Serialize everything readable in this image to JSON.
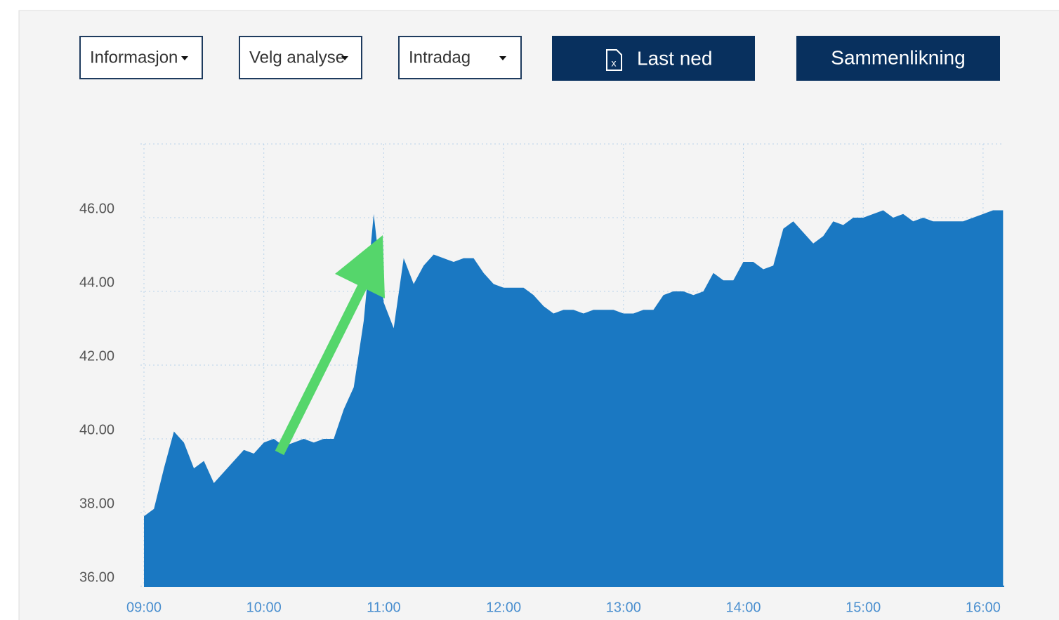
{
  "controls": {
    "dropdowns": [
      "Informasjon",
      "Velg analyse",
      "Intradag"
    ],
    "download": "Last ned",
    "compare": "Sammenlikning"
  },
  "chart_data": {
    "type": "area",
    "color": "#1a78c2",
    "x": [
      "09:00",
      "09:05",
      "09:10",
      "09:15",
      "09:20",
      "09:25",
      "09:30",
      "09:35",
      "09:40",
      "09:45",
      "09:50",
      "09:55",
      "10:00",
      "10:05",
      "10:10",
      "10:15",
      "10:20",
      "10:25",
      "10:30",
      "10:35",
      "10:40",
      "10:45",
      "10:50",
      "10:55",
      "11:00",
      "11:05",
      "11:10",
      "11:15",
      "11:20",
      "11:25",
      "11:30",
      "11:35",
      "11:40",
      "11:45",
      "11:50",
      "11:55",
      "12:00",
      "12:05",
      "12:10",
      "12:15",
      "12:20",
      "12:25",
      "12:30",
      "12:35",
      "12:40",
      "12:45",
      "12:50",
      "12:55",
      "13:00",
      "13:05",
      "13:10",
      "13:15",
      "13:20",
      "13:25",
      "13:30",
      "13:35",
      "13:40",
      "13:45",
      "13:50",
      "13:55",
      "14:00",
      "14:05",
      "14:10",
      "14:15",
      "14:20",
      "14:25",
      "14:30",
      "14:35",
      "14:40",
      "14:45",
      "14:50",
      "14:55",
      "15:00",
      "15:05",
      "15:10",
      "15:15",
      "15:20",
      "15:25",
      "15:30",
      "15:35",
      "15:40",
      "15:45",
      "15:50",
      "15:55",
      "16:00",
      "16:05",
      "16:10"
    ],
    "values": [
      37.9,
      38.1,
      39.2,
      40.2,
      39.9,
      39.2,
      39.4,
      38.8,
      39.1,
      39.4,
      39.7,
      39.6,
      39.9,
      40.0,
      39.8,
      39.9,
      40.0,
      39.9,
      40.0,
      40.0,
      40.8,
      41.4,
      43.2,
      46.1,
      43.7,
      43.0,
      44.9,
      44.2,
      44.7,
      45.0,
      44.9,
      44.8,
      44.9,
      44.9,
      44.5,
      44.2,
      44.1,
      44.1,
      44.1,
      43.9,
      43.6,
      43.4,
      43.5,
      43.5,
      43.4,
      43.5,
      43.5,
      43.5,
      43.4,
      43.4,
      43.5,
      43.5,
      43.9,
      44.0,
      44.0,
      43.9,
      44.0,
      44.5,
      44.3,
      44.3,
      44.8,
      44.8,
      44.6,
      44.7,
      45.7,
      45.9,
      45.6,
      45.3,
      45.5,
      45.9,
      45.8,
      46.0,
      46.0,
      46.1,
      46.2,
      46.0,
      46.1,
      45.9,
      46.0,
      45.9,
      45.9,
      45.9,
      45.9,
      46.0,
      46.1,
      46.2,
      46.2
    ],
    "xlim": [
      "09:00",
      "16:10"
    ],
    "xticks": [
      "09:00",
      "10:00",
      "11:00",
      "12:00",
      "13:00",
      "14:00",
      "15:00",
      "16:00"
    ],
    "ylim": [
      36,
      48
    ],
    "yticks": [
      {
        "value": 36,
        "label": "36.00"
      },
      {
        "value": 38,
        "label": "38.00"
      },
      {
        "value": 40,
        "label": "40.00"
      },
      {
        "value": 42,
        "label": "42.00"
      },
      {
        "value": 44,
        "label": "44.00"
      },
      {
        "value": 46,
        "label": "46.00"
      }
    ],
    "grid": true
  }
}
